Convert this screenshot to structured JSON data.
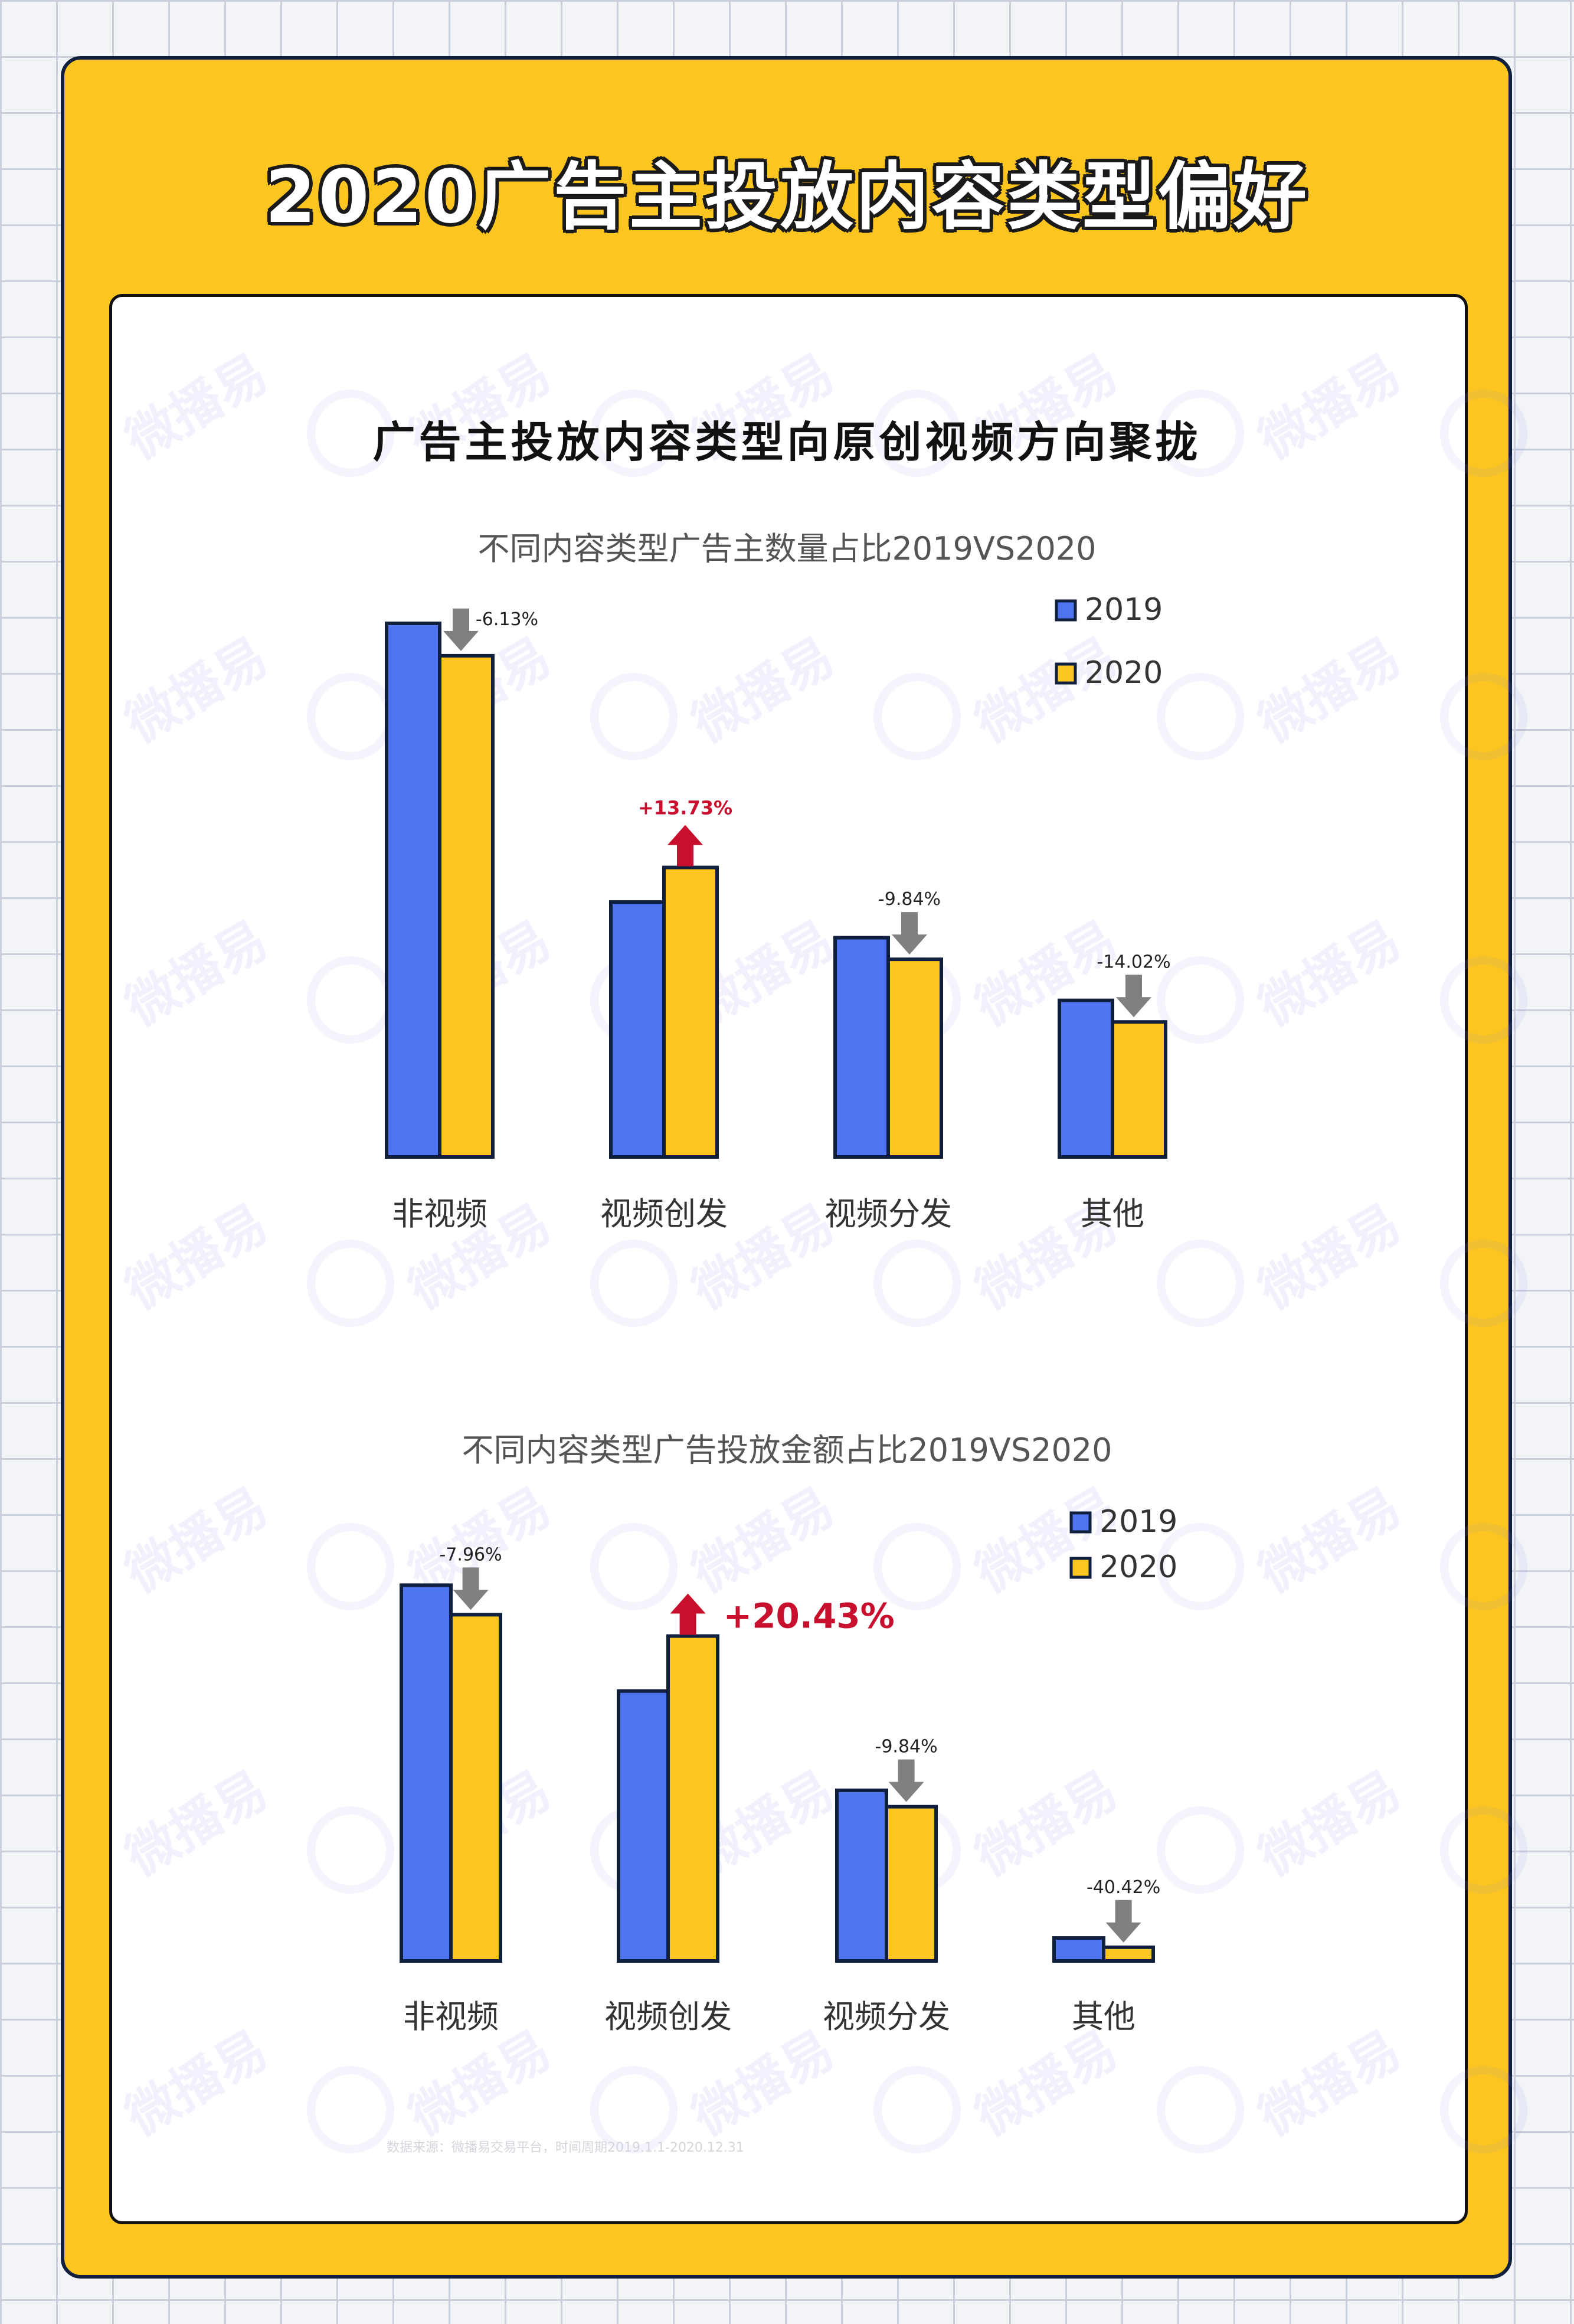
{
  "title": "2020广告主投放内容类型偏好",
  "subtitle": "广告主投放内容类型向原创视频方向聚拢",
  "watermark": "微播易",
  "colors": {
    "background": "#f2f4f8",
    "frame": "#fcc51f",
    "series_2019": "#4f74ef",
    "series_2020": "#fcc51f",
    "bar_outline": "#0f1f3d",
    "increase": "#c8102e",
    "decrease": "#808080"
  },
  "source_note": "数据来源：微播易交易平台，时间周期2019.1.1-2020.12.31",
  "chart_data": [
    {
      "type": "bar",
      "title": "不同内容类型广告主数量占比2019VS2020",
      "categories": [
        "非视频",
        "视频创发",
        "视频分发",
        "其他"
      ],
      "series": [
        {
          "name": "2019",
          "values": [
            49.4,
            23.6,
            20.3,
            14.5
          ]
        },
        {
          "name": "2020",
          "values": [
            46.4,
            26.8,
            18.3,
            12.5
          ]
        }
      ],
      "changes": [
        "-6.13%",
        "+13.73%",
        "-9.84%",
        "-14.02%"
      ],
      "change_direction": [
        "down",
        "up",
        "down",
        "down"
      ],
      "legend_position": "top-right",
      "ylim": [
        0,
        50
      ],
      "grid": false
    },
    {
      "type": "bar",
      "title": "不同内容类型广告投放金额占比2019VS2020",
      "categories": [
        "非视频",
        "视频创发",
        "视频分发",
        "其他"
      ],
      "series": [
        {
          "name": "2019",
          "values": [
            45.8,
            32.9,
            20.8,
            2.8
          ]
        },
        {
          "name": "2020",
          "values": [
            42.2,
            39.6,
            18.8,
            1.67
          ]
        }
      ],
      "changes": [
        "-7.96%",
        "+20.43%",
        "-9.84%",
        "-40.42%"
      ],
      "change_direction": [
        "down",
        "up",
        "down",
        "down"
      ],
      "legend_position": "top-right",
      "ylim": [
        0,
        50
      ],
      "grid": false
    }
  ]
}
